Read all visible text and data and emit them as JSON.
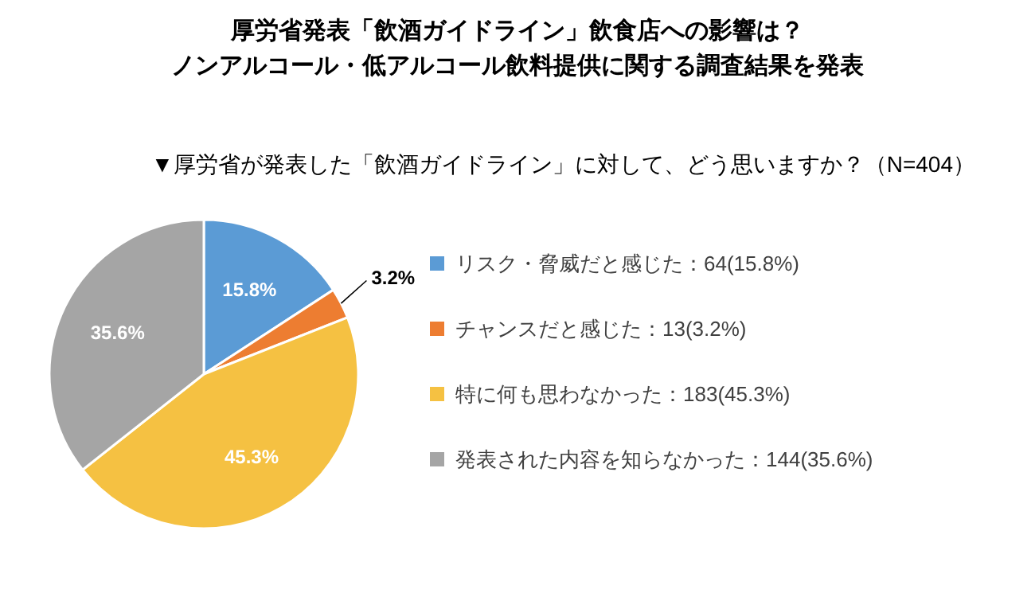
{
  "chart_data": {
    "type": "pie",
    "title": "厚労省発表「飲酒ガイドライン」飲食店への影響は？ノンアルコール・低アルコール飲料提供に関する調査結果を発表",
    "subtitle": "▼厚労省が発表した「飲酒ガイドライン」に対して、どう思いますか？（N=404）",
    "categories": [
      "リスク・脅威だと感じた：64(15.8%)",
      "チャンスだと感じた：13(3.2%)",
      "特に何も思わなかった：183(45.3%)",
      "発表された内容を知らなかった：144(35.6%)"
    ],
    "values": [
      15.8,
      3.2,
      45.3,
      35.6
    ],
    "colors": [
      "#5b9bd5",
      "#ed7d31",
      "#f5c142",
      "#a5a5a5"
    ],
    "value_labels": [
      "15.8%",
      "3.2%",
      "45.3%",
      "35.6%"
    ],
    "legend": "right"
  }
}
